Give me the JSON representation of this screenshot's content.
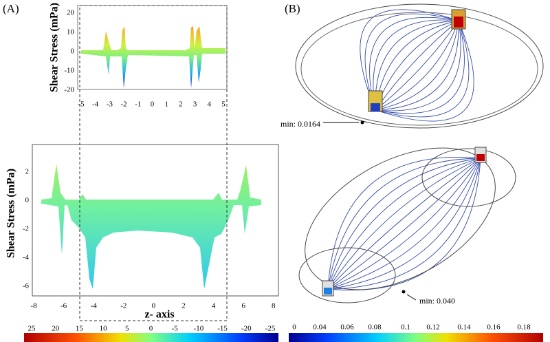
{
  "panel_a": {
    "label": "(A)",
    "inset": {
      "y_label": "Shear Stress (mPa)",
      "yticks": [
        "20",
        "10",
        "0",
        "-10",
        "-20"
      ],
      "xticks": [
        "-5",
        "-4",
        "-3",
        "-2",
        "-1",
        "0",
        "1",
        "2",
        "3",
        "4",
        "5"
      ]
    },
    "main": {
      "y_label": "Shear Stress (mPa)",
      "yticks": [
        "2",
        "0",
        "-2",
        "-4",
        "-6"
      ],
      "xticks": [
        "-8",
        "-6",
        "-4",
        "-2",
        "0",
        "2",
        "4",
        "6",
        "8"
      ],
      "x_label": "z- axis"
    },
    "colorbar": {
      "ticks": [
        "25",
        "20",
        "15",
        "10",
        "5",
        "0",
        "-5",
        "-10",
        "-15",
        "-20",
        "-25"
      ]
    }
  },
  "panel_b": {
    "label": "(B)",
    "annotations": [
      "min: 0.0164",
      "min: 0.040"
    ],
    "colorbar": {
      "ticks": [
        "0",
        "0.04",
        "0.06",
        "0.08",
        "0.1",
        "0.12",
        "0.14",
        "0.16",
        "0.18"
      ]
    }
  }
}
